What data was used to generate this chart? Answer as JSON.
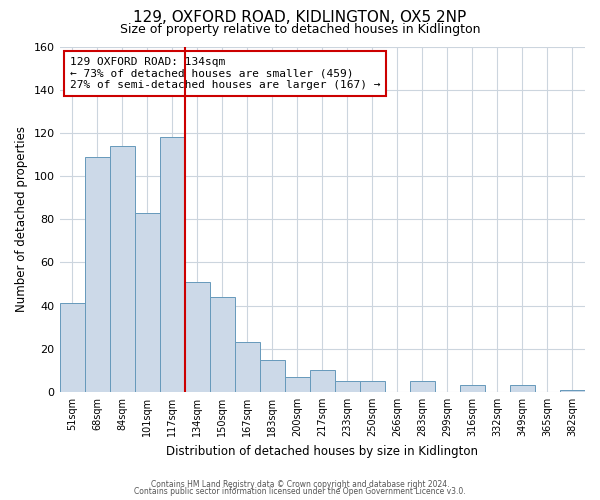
{
  "title": "129, OXFORD ROAD, KIDLINGTON, OX5 2NP",
  "subtitle": "Size of property relative to detached houses in Kidlington",
  "xlabel": "Distribution of detached houses by size in Kidlington",
  "ylabel": "Number of detached properties",
  "bin_labels": [
    "51sqm",
    "68sqm",
    "84sqm",
    "101sqm",
    "117sqm",
    "134sqm",
    "150sqm",
    "167sqm",
    "183sqm",
    "200sqm",
    "217sqm",
    "233sqm",
    "250sqm",
    "266sqm",
    "283sqm",
    "299sqm",
    "316sqm",
    "332sqm",
    "349sqm",
    "365sqm",
    "382sqm"
  ],
  "bar_heights": [
    41,
    109,
    114,
    83,
    118,
    51,
    44,
    23,
    15,
    7,
    10,
    5,
    5,
    0,
    5,
    0,
    3,
    0,
    3,
    0,
    1
  ],
  "bar_color": "#ccd9e8",
  "bar_edge_color": "#6699bb",
  "vline_x_index": 5,
  "vline_color": "#cc0000",
  "annotation_text": "129 OXFORD ROAD: 134sqm\n← 73% of detached houses are smaller (459)\n27% of semi-detached houses are larger (167) →",
  "annotation_box_edge": "#cc0000",
  "ylim": [
    0,
    160
  ],
  "yticks": [
    0,
    20,
    40,
    60,
    80,
    100,
    120,
    140,
    160
  ],
  "footer_line1": "Contains HM Land Registry data © Crown copyright and database right 2024.",
  "footer_line2": "Contains public sector information licensed under the Open Government Licence v3.0.",
  "background_color": "#ffffff",
  "grid_color": "#ccd5de"
}
